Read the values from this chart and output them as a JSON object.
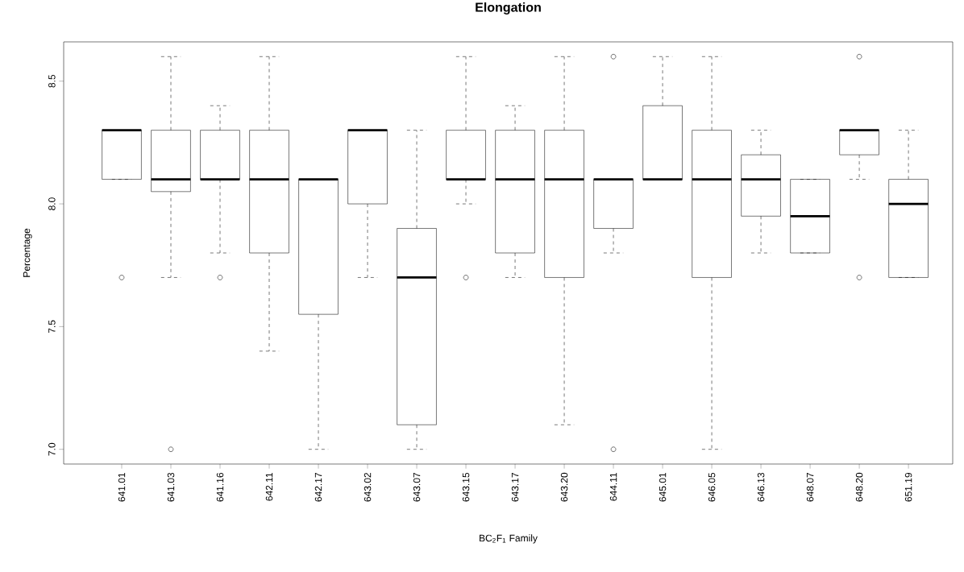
{
  "chart_data": {
    "type": "box",
    "title": "Elongation",
    "xlabel": "BC$_{2}$F$_{1}$ Family",
    "ylabel": "Percentage",
    "categories": [
      "641.01",
      "641.03",
      "641.16",
      "642.11",
      "642.17",
      "643.02",
      "643.07",
      "643.15",
      "643.17",
      "643.20",
      "644.11",
      "645.01",
      "646.05",
      "646.13",
      "648.07",
      "648.20",
      "651.19"
    ],
    "boxes": [
      {
        "low": 8.1,
        "q1": 8.1,
        "median": 8.3,
        "q3": 8.3,
        "high": 8.3,
        "outliers": [
          7.7
        ]
      },
      {
        "low": 7.7,
        "q1": 8.05,
        "median": 8.1,
        "q3": 8.3,
        "high": 8.6,
        "outliers": [
          7.0
        ]
      },
      {
        "low": 7.8,
        "q1": 8.1,
        "median": 8.1,
        "q3": 8.3,
        "high": 8.4,
        "outliers": [
          7.7
        ]
      },
      {
        "low": 7.4,
        "q1": 7.8,
        "median": 8.1,
        "q3": 8.3,
        "high": 8.6
      },
      {
        "low": 7.0,
        "q1": 7.55,
        "median": 8.1,
        "q3": 8.1,
        "high": 8.1
      },
      {
        "low": 7.7,
        "q1": 8.0,
        "median": 8.3,
        "q3": 8.3,
        "high": 8.3
      },
      {
        "low": 7.0,
        "q1": 7.1,
        "median": 7.7,
        "q3": 7.9,
        "high": 8.3
      },
      {
        "low": 8.0,
        "q1": 8.1,
        "median": 8.1,
        "q3": 8.3,
        "high": 8.6,
        "outliers": [
          7.7
        ]
      },
      {
        "low": 7.7,
        "q1": 7.8,
        "median": 8.1,
        "q3": 8.3,
        "high": 8.4
      },
      {
        "low": 7.1,
        "q1": 7.7,
        "median": 8.1,
        "q3": 8.3,
        "high": 8.6
      },
      {
        "low": 7.8,
        "q1": 7.9,
        "median": 8.1,
        "q3": 8.1,
        "high": 8.1,
        "outliers": [
          8.6,
          7.0
        ]
      },
      {
        "low": 8.1,
        "q1": 8.1,
        "median": 8.1,
        "q3": 8.4,
        "high": 8.6
      },
      {
        "low": 7.0,
        "q1": 7.7,
        "median": 8.1,
        "q3": 8.3,
        "high": 8.6
      },
      {
        "low": 7.8,
        "q1": 7.95,
        "median": 8.1,
        "q3": 8.2,
        "high": 8.3
      },
      {
        "low": 7.8,
        "q1": 7.8,
        "median": 7.95,
        "q3": 8.1,
        "high": 8.1
      },
      {
        "low": 8.1,
        "q1": 8.2,
        "median": 8.3,
        "q3": 8.3,
        "high": 8.3,
        "outliers": [
          8.6,
          7.7
        ]
      },
      {
        "low": 7.7,
        "q1": 7.7,
        "median": 8.0,
        "q3": 8.1,
        "high": 8.3
      }
    ],
    "ylim": [
      6.94,
      8.66
    ],
    "yticks": [
      {
        "value": 7.0,
        "label": "7.0"
      },
      {
        "value": 7.5,
        "label": "7.5"
      },
      {
        "value": 8.0,
        "label": "8.0"
      },
      {
        "value": 8.5,
        "label": "8.5"
      }
    ],
    "marker": "circle"
  }
}
